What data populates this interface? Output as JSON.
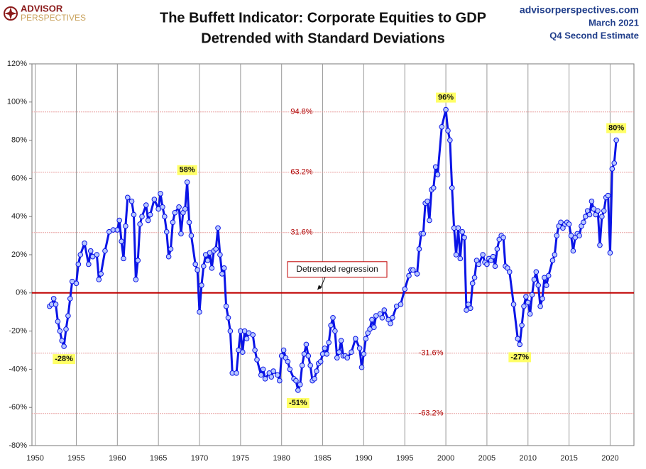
{
  "chart_data": {
    "type": "line",
    "logo": [
      "ADVISOR",
      "PERSPECTIVES"
    ],
    "title": "The Buffett Indicator: Corporate Equities to GDP",
    "subtitle": "Detrended with Standard Deviations",
    "source": "advisorperspectives.com",
    "date": "March 2021",
    "note": "Q4 Second Estimate",
    "xlim": [
      1949.6,
      2022.9
    ],
    "xticks": [
      1950,
      1955,
      1960,
      1965,
      1970,
      1975,
      1980,
      1985,
      1990,
      1995,
      2000,
      2005,
      2010,
      2015,
      2020
    ],
    "ylim": [
      -80,
      120
    ],
    "yticks": [
      {
        "value": -80,
        "label": "-80%"
      },
      {
        "value": -60,
        "label": "-60%"
      },
      {
        "value": -40,
        "label": "-40%"
      },
      {
        "value": -20,
        "label": "-20%"
      },
      {
        "value": 0,
        "label": "0%"
      },
      {
        "value": 20,
        "label": "20%"
      },
      {
        "value": 40,
        "label": "40%"
      },
      {
        "value": 60,
        "label": "60%"
      },
      {
        "value": 80,
        "label": "80%"
      },
      {
        "value": 100,
        "label": "100%"
      },
      {
        "value": 120,
        "label": "120%"
      }
    ],
    "vertical_grid": true,
    "regression": {
      "value": 0,
      "label": "Detrended regression",
      "color": "#c00000"
    },
    "sd_lines": [
      {
        "value": 94.8,
        "label": "94.8%"
      },
      {
        "value": 63.2,
        "label": "63.2%"
      },
      {
        "value": 31.6,
        "label": "31.6%"
      },
      {
        "value": -31.6,
        "label": "-31.6%"
      },
      {
        "value": -63.2,
        "label": "-63.2%"
      }
    ],
    "annotations": [
      {
        "x": 1953.5,
        "label": "-28%"
      },
      {
        "x": 1968.5,
        "label": "58%"
      },
      {
        "x": 1982,
        "label": "-51%"
      },
      {
        "x": 2000,
        "label": "96%"
      },
      {
        "x": 2009,
        "label": "-27%"
      },
      {
        "x": 2020.75,
        "label": "80%"
      }
    ],
    "series": [
      {
        "color": "#0a14e6",
        "x": [
          1951.75,
          1952,
          1952.25,
          1952.5,
          1952.75,
          1953,
          1953.25,
          1953.5,
          1953.75,
          1954,
          1954.25,
          1954.5,
          1955,
          1955.25,
          1955.5,
          1956,
          1956.5,
          1956.75,
          1957,
          1957.5,
          1957.75,
          1958,
          1958.5,
          1959,
          1959.5,
          1960,
          1960.25,
          1960.5,
          1960.75,
          1961,
          1961.25,
          1961.75,
          1962,
          1962.25,
          1962.5,
          1962.75,
          1963,
          1963.5,
          1963.75,
          1964,
          1964.5,
          1965,
          1965.25,
          1965.5,
          1965.75,
          1966,
          1966.25,
          1966.5,
          1966.75,
          1967,
          1967.5,
          1967.75,
          1968,
          1968.25,
          1968.5,
          1968.75,
          1969,
          1969.5,
          1969.75,
          1970,
          1970.25,
          1970.5,
          1970.75,
          1971,
          1971.25,
          1971.5,
          1971.75,
          1972,
          1972.25,
          1972.5,
          1972.75,
          1973,
          1973.25,
          1973.5,
          1973.75,
          1974,
          1974.5,
          1974.75,
          1975,
          1975.25,
          1975.5,
          1975.75,
          1976,
          1976.5,
          1976.75,
          1977,
          1977.5,
          1977.75,
          1978,
          1978.5,
          1978.75,
          1979,
          1979.5,
          1979.75,
          1980,
          1980.25,
          1980.5,
          1980.75,
          1981,
          1981.5,
          1981.75,
          1982,
          1982.25,
          1982.5,
          1982.75,
          1983,
          1983.25,
          1983.5,
          1983.75,
          1984,
          1984.25,
          1984.5,
          1984.75,
          1985,
          1985.25,
          1985.5,
          1985.75,
          1986,
          1986.25,
          1986.5,
          1986.75,
          1987,
          1987.25,
          1987.5,
          1987.75,
          1988,
          1988.5,
          1989,
          1989.5,
          1989.75,
          1990,
          1990.25,
          1990.5,
          1990.75,
          1991,
          1991.25,
          1991.5,
          1992,
          1992.25,
          1992.5,
          1993,
          1993.25,
          1993.5,
          1994,
          1994.5,
          1995,
          1995.5,
          1995.75,
          1996,
          1996.5,
          1996.75,
          1997,
          1997.25,
          1997.5,
          1997.75,
          1998,
          1998.25,
          1998.5,
          1998.75,
          1999,
          1999.5,
          2000,
          2000.25,
          2000.5,
          2000.75,
          2001,
          2001.25,
          2001.5,
          2001.75,
          2002,
          2002.25,
          2002.5,
          2002.75,
          2003,
          2003.25,
          2003.5,
          2003.75,
          2004,
          2004.5,
          2004.75,
          2005,
          2005.25,
          2005.5,
          2005.75,
          2006,
          2006.25,
          2006.5,
          2006.75,
          2007,
          2007.25,
          2007.5,
          2007.75,
          2008.25,
          2008.75,
          2009,
          2009.25,
          2009.5,
          2009.75,
          2010,
          2010.25,
          2010.5,
          2010.75,
          2011,
          2011.25,
          2011.5,
          2011.75,
          2012,
          2012.25,
          2012.5,
          2013,
          2013.25,
          2013.5,
          2013.75,
          2014,
          2014.25,
          2014.5,
          2014.75,
          2015,
          2015.25,
          2015.5,
          2015.75,
          2016,
          2016.25,
          2016.5,
          2016.75,
          2017,
          2017.25,
          2017.5,
          2017.75,
          2018,
          2018.25,
          2018.5,
          2018.75,
          2019,
          2019.25,
          2019.5,
          2019.75,
          2020,
          2020.25,
          2020.5,
          2020.75
        ],
        "values": [
          -7,
          -6,
          -3,
          -6,
          -15,
          -20,
          -25,
          -28,
          -19,
          -12,
          -3,
          6,
          5,
          15,
          20,
          26,
          15,
          22,
          19,
          20,
          7,
          10,
          22,
          32,
          33,
          33,
          38,
          27,
          18,
          35,
          50,
          48,
          41,
          7,
          17,
          36,
          40,
          46,
          38,
          41,
          49,
          44,
          52,
          45,
          40,
          32,
          19,
          23,
          37,
          42,
          45,
          31,
          42,
          44,
          58,
          37,
          30,
          15,
          12,
          -10,
          4,
          14,
          20,
          17,
          21,
          13,
          22,
          23,
          34,
          20,
          10,
          13,
          -7,
          -13,
          -20,
          -42,
          -42,
          -30,
          -20,
          -31,
          -20,
          -24,
          -21,
          -22,
          -30,
          -35,
          -43,
          -40,
          -45,
          -42,
          -44,
          -41,
          -43,
          -46,
          -33,
          -30,
          -34,
          -36,
          -40,
          -45,
          -46,
          -51,
          -48,
          -38,
          -32,
          -27,
          -33,
          -38,
          -46,
          -45,
          -41,
          -37,
          -36,
          -32,
          -29,
          -32,
          -26,
          -17,
          -13,
          -20,
          -34,
          -31,
          -25,
          -33,
          -33,
          -34,
          -31,
          -24,
          -29,
          -39,
          -32,
          -24,
          -21,
          -19,
          -14,
          -18,
          -12,
          -11,
          -13,
          -9,
          -14,
          -16,
          -13,
          -7,
          -6,
          2,
          9,
          12,
          12,
          10,
          23,
          31,
          31,
          47,
          48,
          38,
          54,
          55,
          66,
          62,
          87,
          96,
          85,
          80,
          55,
          34,
          20,
          34,
          18,
          32,
          29,
          -9,
          -6,
          -8,
          5,
          8,
          17,
          15,
          20,
          16,
          15,
          18,
          17,
          19,
          14,
          23,
          28,
          30,
          29,
          14,
          13,
          11,
          -6,
          -24,
          -27,
          -17,
          -7,
          -2,
          -5,
          -11,
          -1,
          7,
          11,
          4,
          -7,
          -3,
          8,
          4,
          9,
          17,
          20,
          30,
          35,
          37,
          34,
          36,
          37,
          36,
          30,
          22,
          29,
          31,
          30,
          35,
          37,
          40,
          43,
          41,
          48,
          44,
          41,
          43,
          25,
          40,
          43,
          50,
          51,
          21,
          65,
          68,
          80
        ]
      }
    ]
  }
}
